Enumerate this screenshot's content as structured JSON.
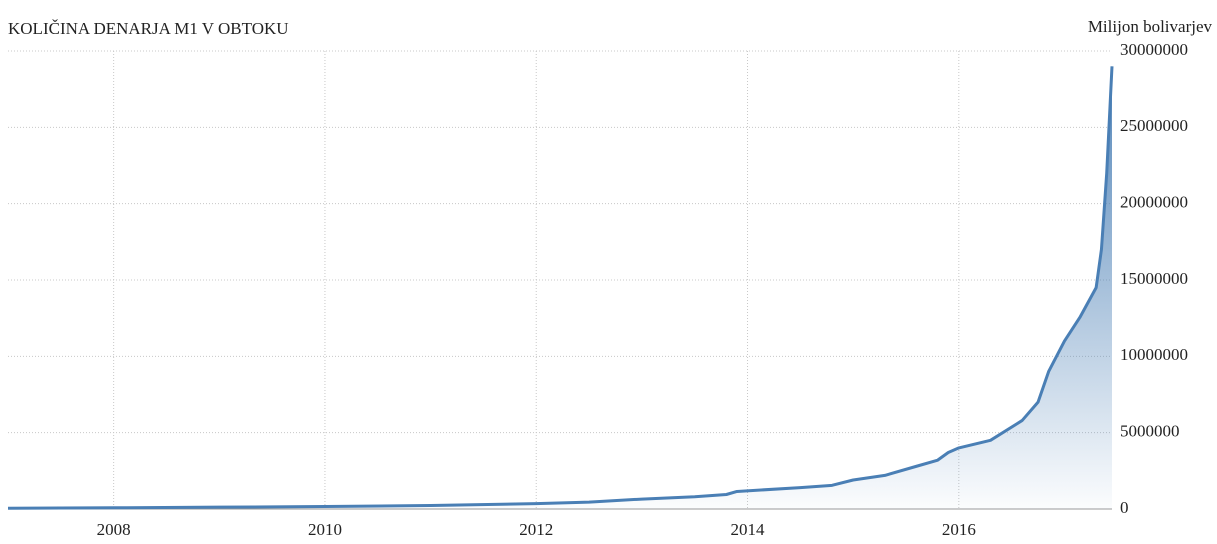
{
  "chart_data": {
    "type": "area",
    "title": "KOLIČINA DENARJA M1 V OBTOKU",
    "y_axis_label": "Milijon bolivarjev",
    "x": [
      2007.0,
      2008.0,
      2009.0,
      2010.0,
      2011.0,
      2012.0,
      2012.5,
      2013.0,
      2013.5,
      2013.8,
      2013.9,
      2014.5,
      2014.8,
      2015.0,
      2015.3,
      2015.6,
      2015.8,
      2015.9,
      2016.0,
      2016.3,
      2016.6,
      2016.75,
      2016.85,
      2017.0,
      2017.15,
      2017.3,
      2017.35,
      2017.4,
      2017.45
    ],
    "series": [
      {
        "name": "M1",
        "color": "#4a7fb5",
        "values": [
          50000,
          80000,
          120000,
          160000,
          230000,
          350000,
          450000,
          650000,
          800000,
          950000,
          1150000,
          1400000,
          1550000,
          1900000,
          2200000,
          2800000,
          3200000,
          3700000,
          4000000,
          4500000,
          5800000,
          7000000,
          9000000,
          11000000,
          12600000,
          14500000,
          17000000,
          22000000,
          29000000
        ]
      }
    ],
    "xlim": [
      2007.0,
      2017.45
    ],
    "xticks": [
      2008,
      2010,
      2012,
      2014,
      2016
    ],
    "ylim": [
      0,
      30000000
    ],
    "yticks": [
      0,
      5000000,
      10000000,
      15000000,
      20000000,
      25000000,
      30000000
    ],
    "grid": true
  }
}
